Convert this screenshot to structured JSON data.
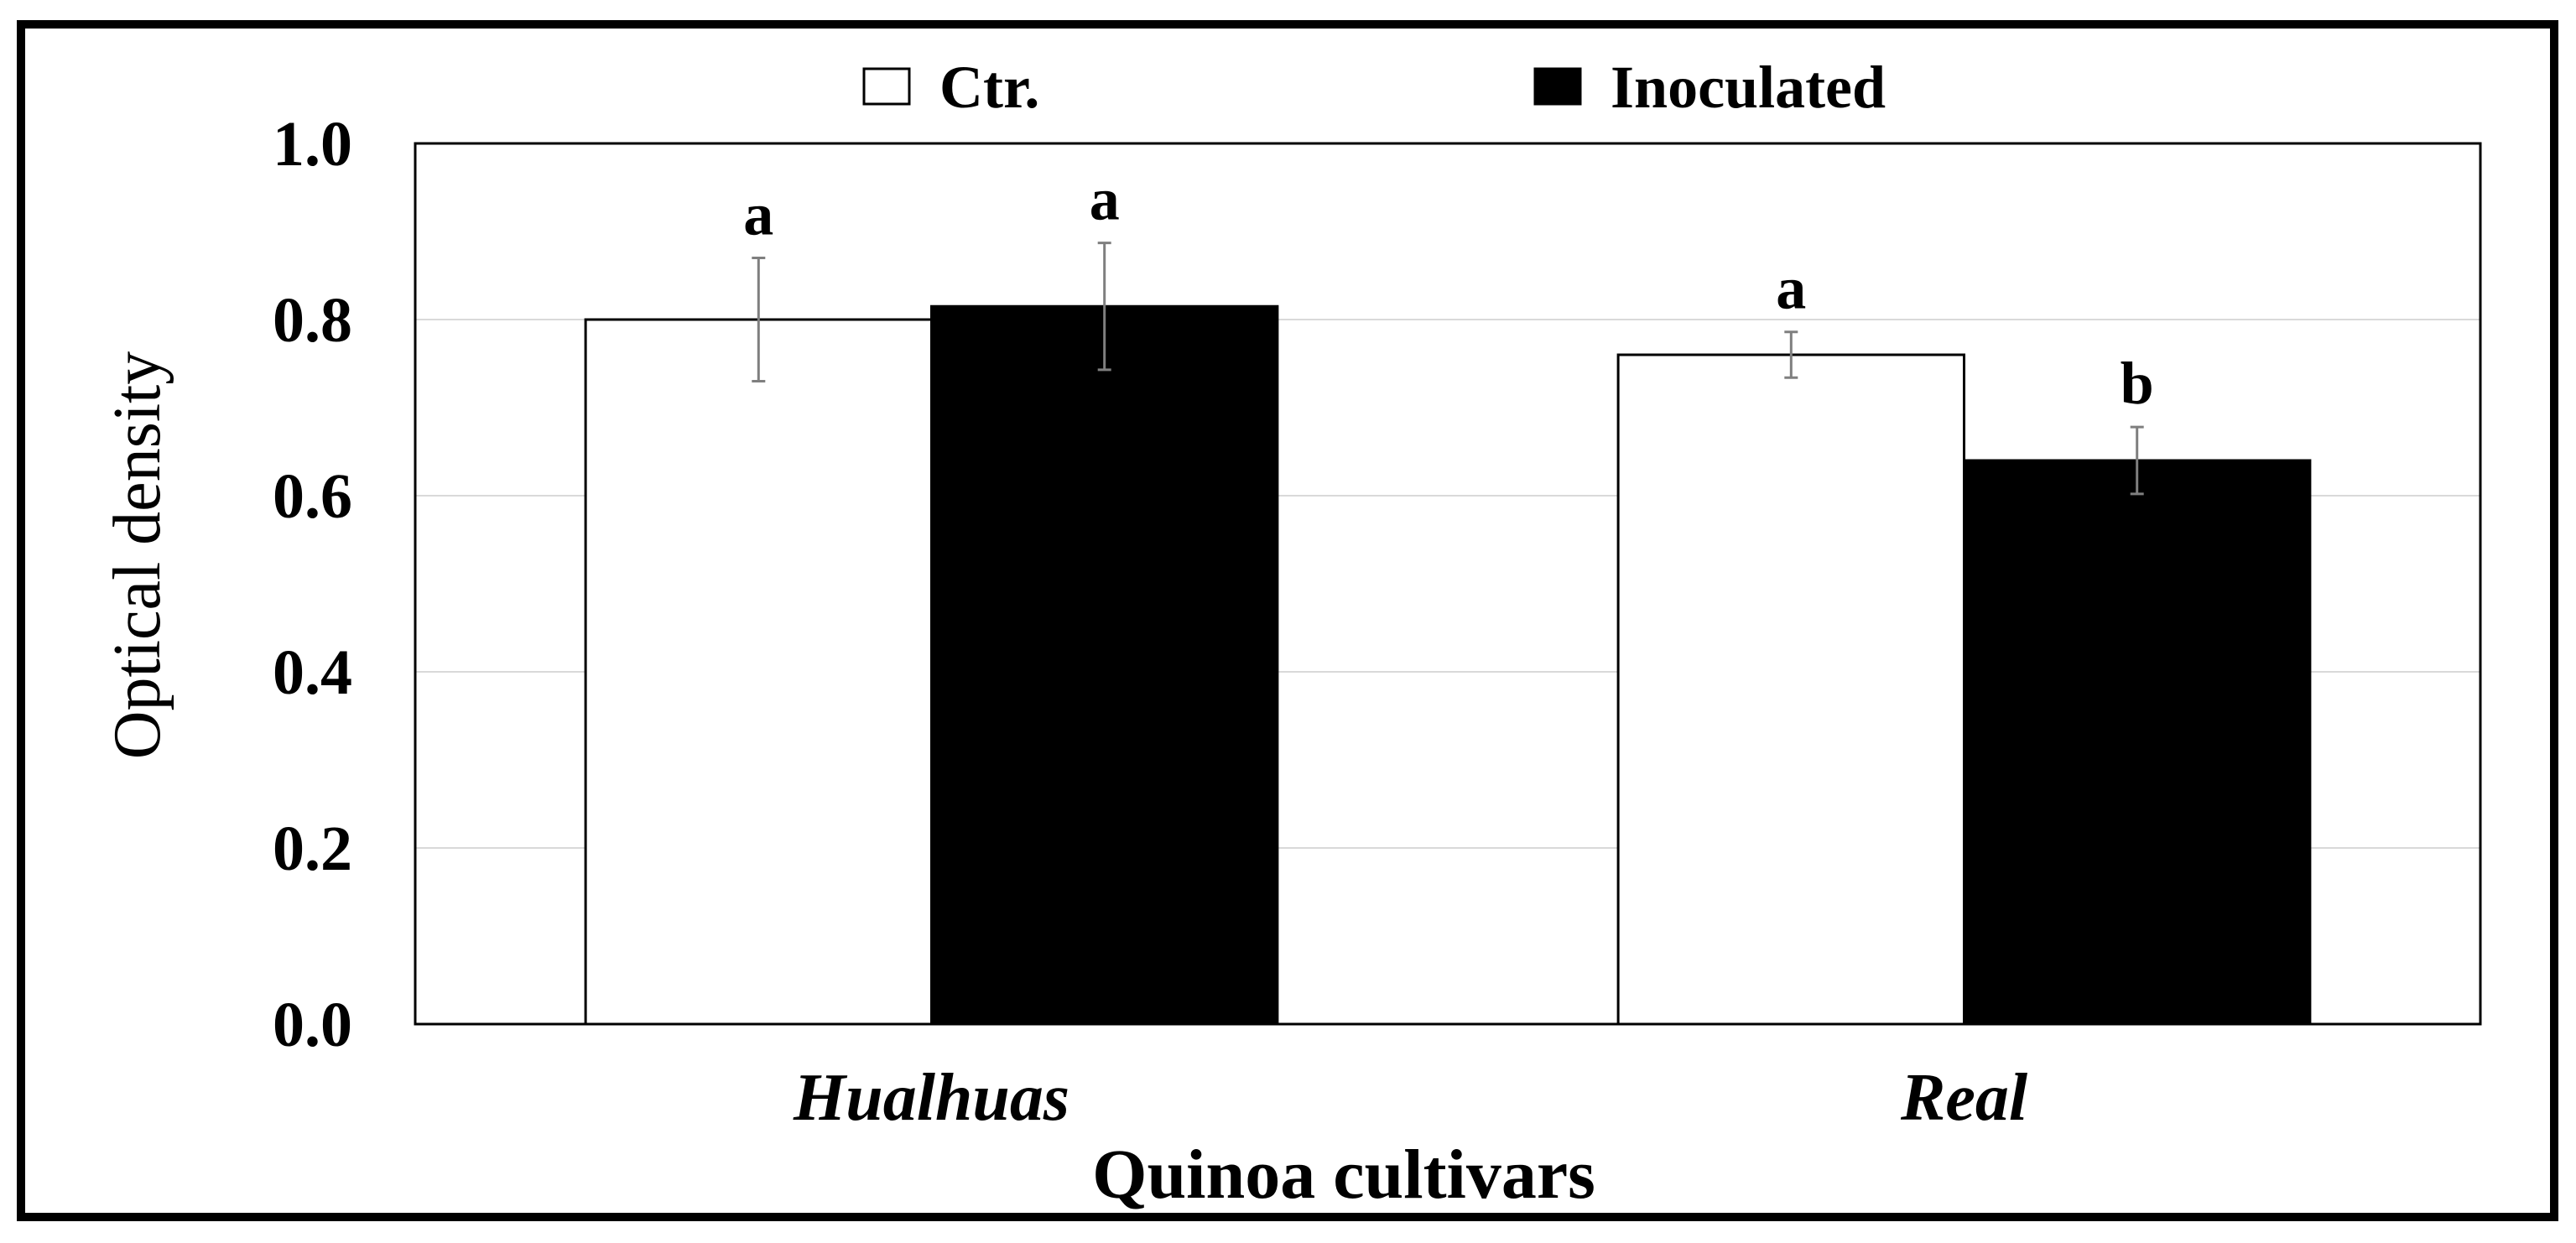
{
  "chart_data": {
    "type": "bar",
    "categories": [
      "Hualhuas",
      "Real"
    ],
    "series": [
      {
        "name": "Ctr.",
        "values": [
          0.8,
          0.76
        ],
        "error": [
          0.07,
          0.026
        ],
        "letters": [
          "a",
          "a"
        ],
        "fill": "#ffffff"
      },
      {
        "name": "Inoculated",
        "values": [
          0.815,
          0.64
        ],
        "error": [
          0.072,
          0.038
        ],
        "letters": [
          "a",
          "b"
        ],
        "fill": "#000000"
      }
    ],
    "xlabel": "Quinoa cultivars",
    "ylabel": "Optical density",
    "ylim": [
      0,
      1.0
    ],
    "yticks": [
      "0.0",
      "0.2",
      "0.4",
      "0.6",
      "0.8",
      "1.0"
    ],
    "grid": true,
    "legend": "top-center",
    "colors": {
      "gridline": "#d9d9d9",
      "error_bar": "#7f7f7f"
    }
  }
}
